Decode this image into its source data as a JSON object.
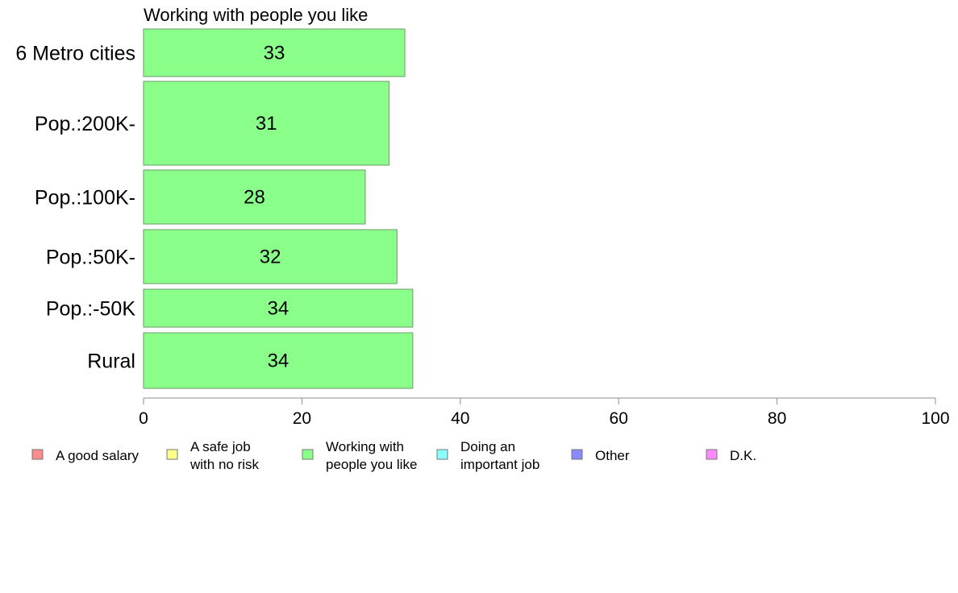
{
  "chart_data": {
    "type": "bar",
    "orientation": "horizontal",
    "title": "Working with people you like",
    "categories": [
      "6 Metro cities",
      "Pop.:200K-",
      "Pop.:100K-",
      "Pop.:50K-",
      "Pop.:-50K",
      "Rural"
    ],
    "values": [
      33,
      31,
      28,
      32,
      34,
      34
    ],
    "value_labels": [
      "33",
      "31",
      "28",
      "32",
      "34",
      "34"
    ],
    "xlim": [
      0,
      100
    ],
    "xticks": [
      0,
      20,
      40,
      60,
      80,
      100
    ],
    "xtick_labels": [
      "0",
      "20",
      "40",
      "60",
      "80",
      "100"
    ],
    "bar_color": "#8aff8a",
    "bar_edge_color": "#6a9a6a",
    "grid": false,
    "legend_position": "bottom",
    "legend": [
      {
        "lines": [
          "A good salary"
        ],
        "color": "#ff8a8a"
      },
      {
        "lines": [
          "A safe job",
          "with no risk"
        ],
        "color": "#ffff8a"
      },
      {
        "lines": [
          "Working with",
          "people you like"
        ],
        "color": "#8aff8a"
      },
      {
        "lines": [
          "Doing an",
          "important job"
        ],
        "color": "#8affff"
      },
      {
        "lines": [
          "Other"
        ],
        "color": "#8a8aff"
      },
      {
        "lines": [
          "D.K."
        ],
        "color": "#ff8aff"
      }
    ]
  }
}
